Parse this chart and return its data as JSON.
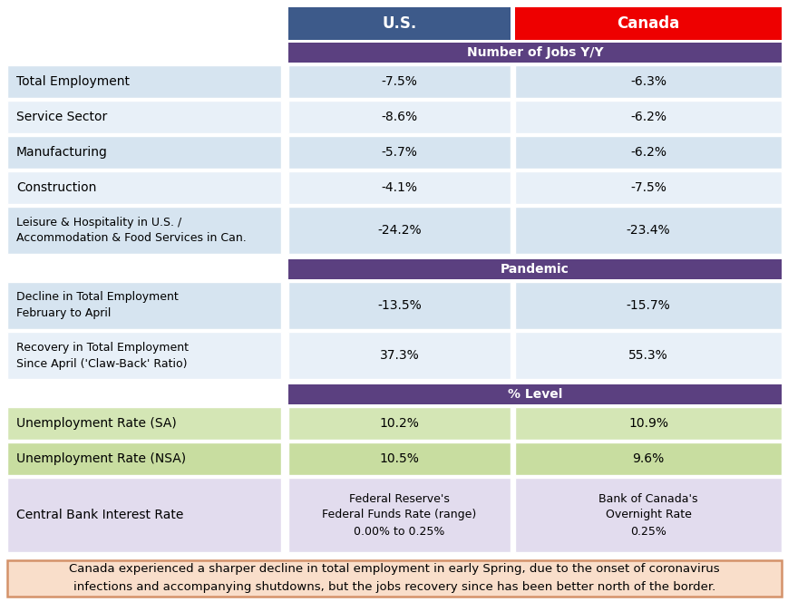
{
  "us_header": "U.S.",
  "canada_header": "Canada",
  "us_header_color": "#3D5A8A",
  "canada_header_color": "#EE0000",
  "section_header_color": "#5B4080",
  "footer_bg": "#F9DECA",
  "footer_border": "#D4926A",
  "sections": [
    "Number of Jobs Y/Y",
    "Pandemic",
    "% Level"
  ],
  "rows": [
    {
      "label": "Total Employment",
      "us": "-7.5%",
      "canada": "-6.3%",
      "bg_left": "#D6E4F0",
      "bg_us": "#D6E4F0",
      "bg_can": "#D6E4F0",
      "double_line": false
    },
    {
      "label": "Service Sector",
      "us": "-8.6%",
      "canada": "-6.2%",
      "bg_left": "#E8F0F8",
      "bg_us": "#E8F0F8",
      "bg_can": "#E8F0F8",
      "double_line": false
    },
    {
      "label": "Manufacturing",
      "us": "-5.7%",
      "canada": "-6.2%",
      "bg_left": "#D6E4F0",
      "bg_us": "#D6E4F0",
      "bg_can": "#D6E4F0",
      "double_line": false
    },
    {
      "label": "Construction",
      "us": "-4.1%",
      "canada": "-7.5%",
      "bg_left": "#E8F0F8",
      "bg_us": "#E8F0F8",
      "bg_can": "#E8F0F8",
      "double_line": false
    },
    {
      "label": "Leisure & Hospitality in U.S. /\nAccommodation & Food Services in Can.",
      "us": "-24.2%",
      "canada": "-23.4%",
      "bg_left": "#D6E4F0",
      "bg_us": "#D6E4F0",
      "bg_can": "#D6E4F0",
      "double_line": true
    },
    {
      "label": "Decline in Total Employment\nFebruary to April",
      "us": "-13.5%",
      "canada": "-15.7%",
      "bg_left": "#D6E4F0",
      "bg_us": "#D6E4F0",
      "bg_can": "#D6E4F0",
      "double_line": true
    },
    {
      "label": "Recovery in Total Employment\nSince April ('Claw-Back' Ratio)",
      "us": "37.3%",
      "canada": "55.3%",
      "bg_left": "#E8F0F8",
      "bg_us": "#E8F0F8",
      "bg_can": "#E8F0F8",
      "double_line": true
    },
    {
      "label": "Unemployment Rate (SA)",
      "us": "10.2%",
      "canada": "10.9%",
      "bg_left": "#D4E6B5",
      "bg_us": "#D4E6B5",
      "bg_can": "#D4E6B5",
      "double_line": false
    },
    {
      "label": "Unemployment Rate (NSA)",
      "us": "10.5%",
      "canada": "9.6%",
      "bg_left": "#C8DDA0",
      "bg_us": "#C8DDA0",
      "bg_can": "#C8DDA0",
      "double_line": false
    },
    {
      "label": "Central Bank Interest Rate",
      "us": "Federal Reserve's\nFederal Funds Rate (range)\n0.00% to 0.25%",
      "canada": "Bank of Canada's\nOvernight Rate\n0.25%",
      "bg_left": "#E2DCEE",
      "bg_us": "#E2DCEE",
      "bg_can": "#E2DCEE",
      "double_line": false
    }
  ],
  "footer_line1": "Canada experienced a sharper decline in total employment in early Spring, due to the onset of coronavirus",
  "footer_line2": "infections and accompanying shutdowns, but the jobs recovery since has been better north of the border."
}
